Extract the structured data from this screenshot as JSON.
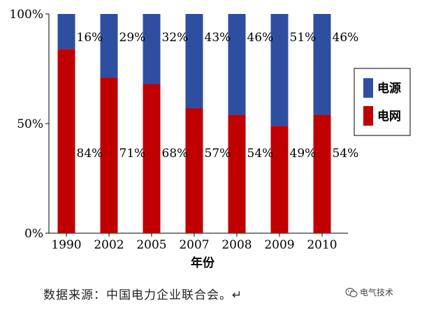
{
  "chart_data": {
    "type": "bar",
    "stacked": true,
    "categories": [
      "1990",
      "2002",
      "2005",
      "2007",
      "2008",
      "2009",
      "2010"
    ],
    "series": [
      {
        "name": "电网",
        "values": [
          84,
          71,
          68,
          57,
          54,
          49,
          54
        ],
        "labels": [
          "84%",
          "71%",
          "68%",
          "57%",
          "54%",
          "49%",
          "54%"
        ],
        "color": "#c00000"
      },
      {
        "name": "电源",
        "values": [
          16,
          29,
          32,
          43,
          46,
          51,
          46
        ],
        "labels": [
          "16%",
          "29%",
          "32%",
          "43%",
          "46%",
          "51%",
          "46%"
        ],
        "color": "#2e4ea1"
      }
    ],
    "xlabel": "年份",
    "ylabel": "",
    "ylim": [
      0,
      100
    ],
    "y_ticks": [
      0,
      50,
      100
    ],
    "y_tick_labels": [
      "0%",
      "50%",
      "100%"
    ],
    "grid": false,
    "legend": {
      "position": "right",
      "entries": [
        {
          "label": "电源",
          "color": "#2e4ea1"
        },
        {
          "label": "电网",
          "color": "#c00000"
        }
      ]
    }
  },
  "source_note": "数据来源：中国电力企业联合会。↵",
  "watermark": {
    "text": "电气技术",
    "icon": "wechat-icon"
  }
}
